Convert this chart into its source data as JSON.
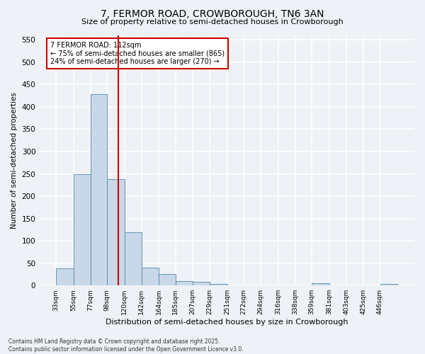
{
  "title": "7, FERMOR ROAD, CROWBOROUGH, TN6 3AN",
  "subtitle": "Size of property relative to semi-detached houses in Crowborough",
  "xlabel": "Distribution of semi-detached houses by size in Crowborough",
  "ylabel": "Number of semi-detached properties",
  "footer_line1": "Contains HM Land Registry data © Crown copyright and database right 2025.",
  "footer_line2": "Contains public sector information licensed under the Open Government Licence v3.0.",
  "annotation_title": "7 FERMOR ROAD: 112sqm",
  "annotation_line1": "← 75% of semi-detached houses are smaller (865)",
  "annotation_line2": "24% of semi-detached houses are larger (270) →",
  "property_size": 112,
  "bin_edges": [
    33,
    55,
    77,
    98,
    120,
    142,
    164,
    185,
    207,
    229,
    251,
    272,
    294,
    316,
    338,
    359,
    381,
    403,
    425,
    446,
    468
  ],
  "bin_counts": [
    38,
    250,
    428,
    238,
    119,
    40,
    25,
    10,
    8,
    3,
    0,
    0,
    0,
    0,
    0,
    5,
    0,
    0,
    0,
    3
  ],
  "bar_color": "#c8d8e8",
  "bar_edge_color": "#5588aa",
  "vline_color": "#cc0000",
  "vline_x": 112,
  "annotation_box_color": "#cc0000",
  "background_color": "#eef2f7",
  "grid_color": "#ffffff",
  "ylim": [
    0,
    560
  ],
  "yticks": [
    0,
    50,
    100,
    150,
    200,
    250,
    300,
    350,
    400,
    450,
    500,
    550
  ]
}
